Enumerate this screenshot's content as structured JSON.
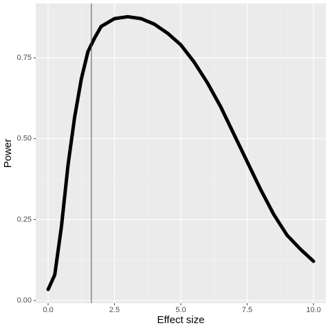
{
  "chart_data": {
    "type": "line",
    "x_label": "Effect size",
    "y_label": "Power",
    "x": [
      0,
      0.25,
      0.5,
      0.75,
      1,
      1.25,
      1.5,
      1.75,
      2,
      2.5,
      3,
      3.5,
      4,
      4.5,
      5,
      5.5,
      6,
      6.5,
      7,
      7.5,
      8,
      8.5,
      9,
      9.5,
      10
    ],
    "series": [
      {
        "color": "#000000",
        "values": [
          0.034,
          0.079,
          0.227,
          0.418,
          0.567,
          0.684,
          0.769,
          0.811,
          0.847,
          0.871,
          0.877,
          0.871,
          0.854,
          0.826,
          0.79,
          0.737,
          0.673,
          0.599,
          0.514,
          0.429,
          0.344,
          0.266,
          0.202,
          0.159,
          0.121
        ]
      }
    ],
    "vline": 1.63,
    "vline_color": "#555555",
    "xlim": [
      -0.466,
      10.466
    ],
    "ylim": [
      -0.0085,
      0.918
    ],
    "xticks": [
      {
        "value": 0,
        "label": "0.0"
      },
      2.5,
      {
        "value": 5,
        "label": "5.0"
      },
      7.5,
      {
        "value": 10,
        "label": "10.0"
      }
    ],
    "yticks": [
      {
        "value": 0,
        "label": "0.00"
      },
      0.25,
      {
        "value": 0.5,
        "label": "0.50"
      },
      0.75
    ],
    "grid": true
  }
}
